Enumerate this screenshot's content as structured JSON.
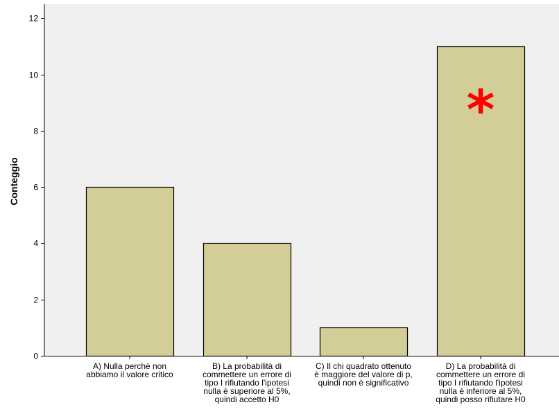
{
  "chart_data": {
    "type": "bar",
    "title": "",
    "xlabel": "",
    "ylabel": "Conteggio",
    "ylim": [
      0,
      12.5
    ],
    "yticks": [
      0,
      2,
      4,
      6,
      8,
      10,
      12
    ],
    "grid": false,
    "legend": "none",
    "categories": [
      "A) Nulla perchè non abbiamo il valore critico",
      "B) La probabilità di commettere un errore di tipo I rifiutando l'ipotesi nulla è superiore al 5%, quindi accetto H0",
      "C) Il chi quadrato ottenuto è maggiore del valore di p, quindi non è significativo",
      "D) La probabilità di commettere un errore di tipo I rifiutando l'ipotesi nulla è inferiore al 5%, quindi posso rifiutare H0"
    ],
    "category_lines": [
      [
        "A) Nulla perchè non",
        "abbiamo il valore critico"
      ],
      [
        "B) La probabilità di",
        "commettere un errore di",
        "tipo I rifiutando l'ipotesi",
        "nulla è superiore al 5%,",
        "quindi accetto H0"
      ],
      [
        "C) Il chi quadrato ottenuto",
        "è maggiore del valore di p,",
        "quindi non è significativo"
      ],
      [
        "D) La probabilità di",
        "commettere un errore di",
        "tipo I rifiutando l'ipotesi",
        "nulla è inferiore al 5%,",
        "quindi posso rifiutare H0"
      ]
    ],
    "values": [
      6,
      4,
      1,
      11
    ],
    "annotation": {
      "text": "*",
      "category_index": 3,
      "color": "#ff0000"
    },
    "colors": {
      "bar_fill": "#d3ce97",
      "bar_stroke": "#000000",
      "plot_background": "#f0f0f0",
      "page_background": "#ffffff"
    }
  }
}
